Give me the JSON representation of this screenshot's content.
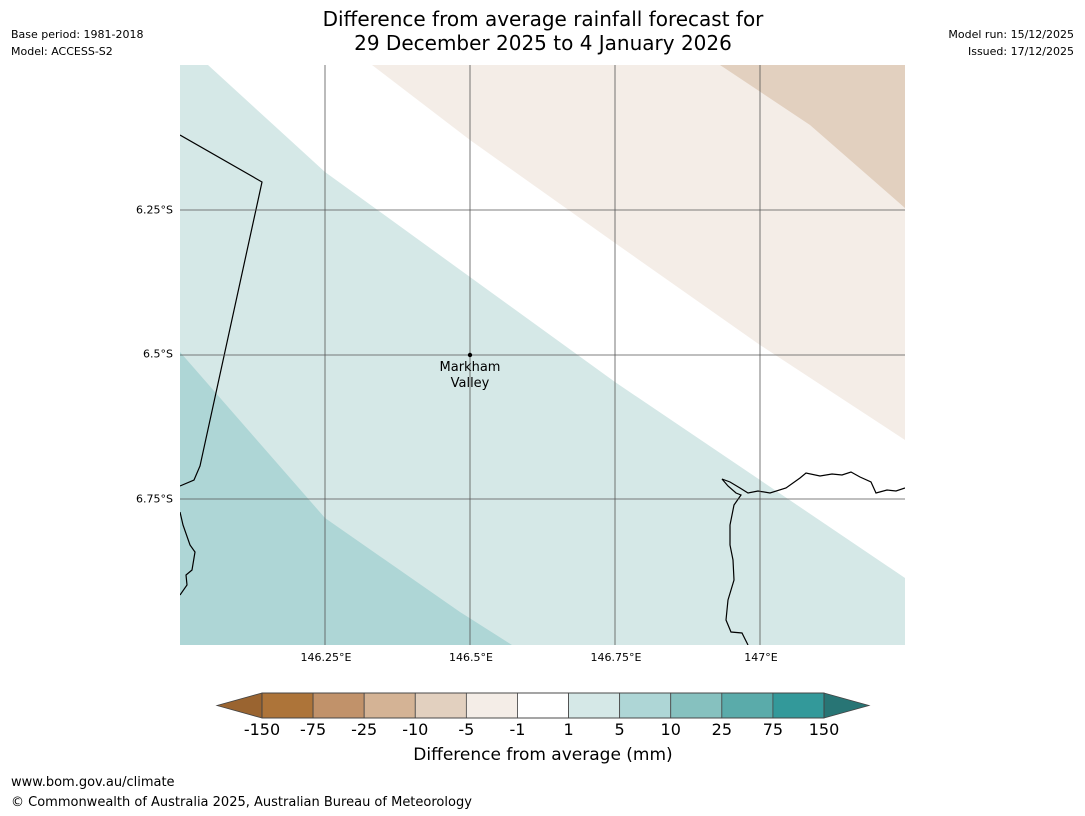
{
  "header": {
    "base_period": "Base period: 1981-2018",
    "model": "Model: ACCESS-S2",
    "title_line1": "Difference from average rainfall forecast for",
    "title_line2": "29 December 2025 to 4 January 2026",
    "model_run": "Model run: 15/12/2025",
    "issued": "Issued: 17/12/2025"
  },
  "map": {
    "lat_labels": [
      "6.25°S",
      "6.5°S",
      "6.75°S"
    ],
    "lon_labels": [
      "146.25°E",
      "146.5°E",
      "146.75°E",
      "147°E"
    ],
    "place": {
      "name_line1": "Markham",
      "name_line2": "Valley"
    },
    "lon_range": [
      146.0,
      147.25
    ],
    "lat_range": [
      -6.0,
      -7.0
    ],
    "region_colors": {
      "wet_1_5": "#d5e8e7",
      "wet_5_10": "#aed6d6",
      "dry_m5_m1": "#f4ede7",
      "dry_m10_m5": "#e2d0bf"
    }
  },
  "colorbar": {
    "ticks": [
      "-150",
      "-75",
      "-25",
      "-10",
      "-5",
      "-1",
      "1",
      "5",
      "10",
      "25",
      "75",
      "150"
    ],
    "colors": [
      "#9a6430",
      "#ad7439",
      "#c1926a",
      "#d4b395",
      "#e2d0bf",
      "#f4ede7",
      "#ffffff",
      "#d5e8e7",
      "#aed6d6",
      "#86c1bf",
      "#5aabaa",
      "#33999a",
      "#287575"
    ],
    "label": "Difference from average (mm)"
  },
  "footer": {
    "url": "www.bom.gov.au/climate",
    "copyright": "© Commonwealth of Australia 2025, Australian Bureau of Meteorology"
  }
}
